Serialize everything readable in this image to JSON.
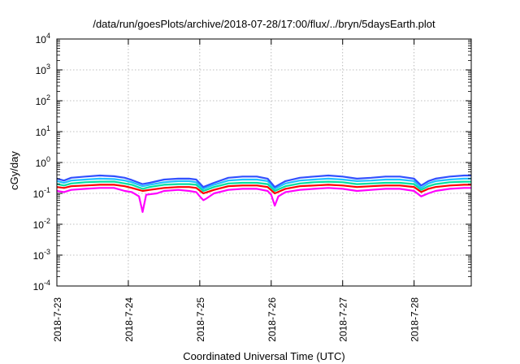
{
  "chart_data": {
    "type": "line",
    "title": "/data/run/goesPlots/archive/2018-07-28/17:00/flux/../bryn/5daysEarth.plot",
    "xlabel": "Coordinated Universal Time (UTC)",
    "ylabel": "cGy/day",
    "yscale": "log",
    "ylim": [
      0.0001,
      10000
    ],
    "xlim": [
      0,
      5.8
    ],
    "grid": true,
    "y_ticks": [
      {
        "base": "10",
        "exp": "-4",
        "value": 0.0001
      },
      {
        "base": "10",
        "exp": "-3",
        "value": 0.001
      },
      {
        "base": "10",
        "exp": "-2",
        "value": 0.01
      },
      {
        "base": "10",
        "exp": "-1",
        "value": 0.1
      },
      {
        "base": "10",
        "exp": "0",
        "value": 1
      },
      {
        "base": "10",
        "exp": "1",
        "value": 10
      },
      {
        "base": "10",
        "exp": "2",
        "value": 100
      },
      {
        "base": "10",
        "exp": "3",
        "value": 1000
      },
      {
        "base": "10",
        "exp": "4",
        "value": 10000
      }
    ],
    "x_ticks": [
      {
        "label": "2018-7-23",
        "value": 0
      },
      {
        "label": "2018-7-24",
        "value": 1
      },
      {
        "label": "2018-7-25",
        "value": 2
      },
      {
        "label": "2018-7-26",
        "value": 3
      },
      {
        "label": "2018-7-27",
        "value": 4
      },
      {
        "label": "2018-7-28",
        "value": 5
      }
    ],
    "series": [
      {
        "color": "#ff00ff",
        "values": [
          [
            0,
            0.12
          ],
          [
            0.1,
            0.11
          ],
          [
            0.2,
            0.13
          ],
          [
            0.4,
            0.14
          ],
          [
            0.6,
            0.15
          ],
          [
            0.8,
            0.15
          ],
          [
            0.95,
            0.12
          ],
          [
            1.05,
            0.11
          ],
          [
            1.15,
            0.08
          ],
          [
            1.2,
            0.025
          ],
          [
            1.25,
            0.09
          ],
          [
            1.4,
            0.1
          ],
          [
            1.5,
            0.12
          ],
          [
            1.7,
            0.13
          ],
          [
            1.85,
            0.12
          ],
          [
            1.95,
            0.11
          ],
          [
            2.0,
            0.08
          ],
          [
            2.05,
            0.06
          ],
          [
            2.1,
            0.07
          ],
          [
            2.2,
            0.1
          ],
          [
            2.4,
            0.13
          ],
          [
            2.6,
            0.14
          ],
          [
            2.8,
            0.14
          ],
          [
            2.95,
            0.12
          ],
          [
            3.0,
            0.09
          ],
          [
            3.05,
            0.04
          ],
          [
            3.1,
            0.08
          ],
          [
            3.2,
            0.11
          ],
          [
            3.4,
            0.13
          ],
          [
            3.6,
            0.14
          ],
          [
            3.8,
            0.15
          ],
          [
            4.0,
            0.14
          ],
          [
            4.2,
            0.12
          ],
          [
            4.4,
            0.13
          ],
          [
            4.6,
            0.14
          ],
          [
            4.8,
            0.14
          ],
          [
            5.0,
            0.12
          ],
          [
            5.1,
            0.08
          ],
          [
            5.2,
            0.1
          ],
          [
            5.3,
            0.12
          ],
          [
            5.5,
            0.14
          ],
          [
            5.7,
            0.15
          ],
          [
            5.8,
            0.15
          ]
        ]
      },
      {
        "color": "#ff0000",
        "values": [
          [
            0,
            0.16
          ],
          [
            0.1,
            0.15
          ],
          [
            0.2,
            0.17
          ],
          [
            0.4,
            0.18
          ],
          [
            0.6,
            0.19
          ],
          [
            0.8,
            0.19
          ],
          [
            0.95,
            0.17
          ],
          [
            1.05,
            0.15
          ],
          [
            1.2,
            0.12
          ],
          [
            1.3,
            0.13
          ],
          [
            1.5,
            0.15
          ],
          [
            1.7,
            0.16
          ],
          [
            1.85,
            0.16
          ],
          [
            1.95,
            0.15
          ],
          [
            2.05,
            0.1
          ],
          [
            2.2,
            0.13
          ],
          [
            2.4,
            0.17
          ],
          [
            2.6,
            0.18
          ],
          [
            2.8,
            0.18
          ],
          [
            2.95,
            0.16
          ],
          [
            3.05,
            0.1
          ],
          [
            3.2,
            0.14
          ],
          [
            3.4,
            0.17
          ],
          [
            3.6,
            0.18
          ],
          [
            3.8,
            0.19
          ],
          [
            4.0,
            0.18
          ],
          [
            4.2,
            0.16
          ],
          [
            4.4,
            0.17
          ],
          [
            4.6,
            0.18
          ],
          [
            4.8,
            0.18
          ],
          [
            5.0,
            0.16
          ],
          [
            5.1,
            0.11
          ],
          [
            5.2,
            0.14
          ],
          [
            5.3,
            0.16
          ],
          [
            5.5,
            0.18
          ],
          [
            5.7,
            0.19
          ],
          [
            5.8,
            0.19
          ]
        ]
      },
      {
        "color": "#00e0a0",
        "values": [
          [
            0,
            0.2
          ],
          [
            0.1,
            0.18
          ],
          [
            0.2,
            0.21
          ],
          [
            0.4,
            0.23
          ],
          [
            0.6,
            0.24
          ],
          [
            0.8,
            0.24
          ],
          [
            0.95,
            0.21
          ],
          [
            1.05,
            0.19
          ],
          [
            1.2,
            0.14
          ],
          [
            1.3,
            0.16
          ],
          [
            1.5,
            0.19
          ],
          [
            1.7,
            0.2
          ],
          [
            1.85,
            0.2
          ],
          [
            1.95,
            0.19
          ],
          [
            2.05,
            0.12
          ],
          [
            2.2,
            0.16
          ],
          [
            2.4,
            0.21
          ],
          [
            2.6,
            0.22
          ],
          [
            2.8,
            0.22
          ],
          [
            2.95,
            0.2
          ],
          [
            3.05,
            0.12
          ],
          [
            3.2,
            0.17
          ],
          [
            3.4,
            0.21
          ],
          [
            3.6,
            0.23
          ],
          [
            3.8,
            0.24
          ],
          [
            4.0,
            0.23
          ],
          [
            4.2,
            0.2
          ],
          [
            4.4,
            0.21
          ],
          [
            4.6,
            0.22
          ],
          [
            4.8,
            0.22
          ],
          [
            5.0,
            0.2
          ],
          [
            5.1,
            0.13
          ],
          [
            5.2,
            0.17
          ],
          [
            5.3,
            0.2
          ],
          [
            5.5,
            0.23
          ],
          [
            5.7,
            0.24
          ],
          [
            5.8,
            0.24
          ]
        ]
      },
      {
        "color": "#20c0ff",
        "values": [
          [
            0,
            0.25
          ],
          [
            0.1,
            0.22
          ],
          [
            0.2,
            0.26
          ],
          [
            0.4,
            0.28
          ],
          [
            0.6,
            0.3
          ],
          [
            0.8,
            0.29
          ],
          [
            0.95,
            0.26
          ],
          [
            1.05,
            0.23
          ],
          [
            1.2,
            0.17
          ],
          [
            1.3,
            0.19
          ],
          [
            1.5,
            0.23
          ],
          [
            1.7,
            0.25
          ],
          [
            1.85,
            0.25
          ],
          [
            1.95,
            0.23
          ],
          [
            2.05,
            0.14
          ],
          [
            2.2,
            0.19
          ],
          [
            2.4,
            0.26
          ],
          [
            2.6,
            0.28
          ],
          [
            2.8,
            0.28
          ],
          [
            2.95,
            0.25
          ],
          [
            3.05,
            0.14
          ],
          [
            3.2,
            0.21
          ],
          [
            3.4,
            0.26
          ],
          [
            3.6,
            0.28
          ],
          [
            3.8,
            0.3
          ],
          [
            4.0,
            0.28
          ],
          [
            4.2,
            0.25
          ],
          [
            4.4,
            0.26
          ],
          [
            4.6,
            0.28
          ],
          [
            4.8,
            0.28
          ],
          [
            5.0,
            0.25
          ],
          [
            5.1,
            0.15
          ],
          [
            5.2,
            0.21
          ],
          [
            5.3,
            0.25
          ],
          [
            5.5,
            0.28
          ],
          [
            5.7,
            0.3
          ],
          [
            5.8,
            0.3
          ]
        ]
      },
      {
        "color": "#3050ff",
        "values": [
          [
            0,
            0.3
          ],
          [
            0.1,
            0.26
          ],
          [
            0.2,
            0.32
          ],
          [
            0.4,
            0.35
          ],
          [
            0.6,
            0.38
          ],
          [
            0.8,
            0.36
          ],
          [
            0.95,
            0.32
          ],
          [
            1.05,
            0.27
          ],
          [
            1.2,
            0.2
          ],
          [
            1.3,
            0.22
          ],
          [
            1.5,
            0.28
          ],
          [
            1.7,
            0.3
          ],
          [
            1.85,
            0.3
          ],
          [
            1.95,
            0.28
          ],
          [
            2.05,
            0.16
          ],
          [
            2.2,
            0.22
          ],
          [
            2.4,
            0.32
          ],
          [
            2.6,
            0.35
          ],
          [
            2.8,
            0.35
          ],
          [
            2.95,
            0.3
          ],
          [
            3.05,
            0.16
          ],
          [
            3.2,
            0.25
          ],
          [
            3.4,
            0.32
          ],
          [
            3.6,
            0.35
          ],
          [
            3.8,
            0.38
          ],
          [
            4.0,
            0.35
          ],
          [
            4.2,
            0.3
          ],
          [
            4.4,
            0.32
          ],
          [
            4.6,
            0.35
          ],
          [
            4.8,
            0.35
          ],
          [
            5.0,
            0.3
          ],
          [
            5.1,
            0.18
          ],
          [
            5.2,
            0.25
          ],
          [
            5.3,
            0.3
          ],
          [
            5.5,
            0.35
          ],
          [
            5.7,
            0.38
          ],
          [
            5.8,
            0.38
          ]
        ]
      }
    ]
  }
}
